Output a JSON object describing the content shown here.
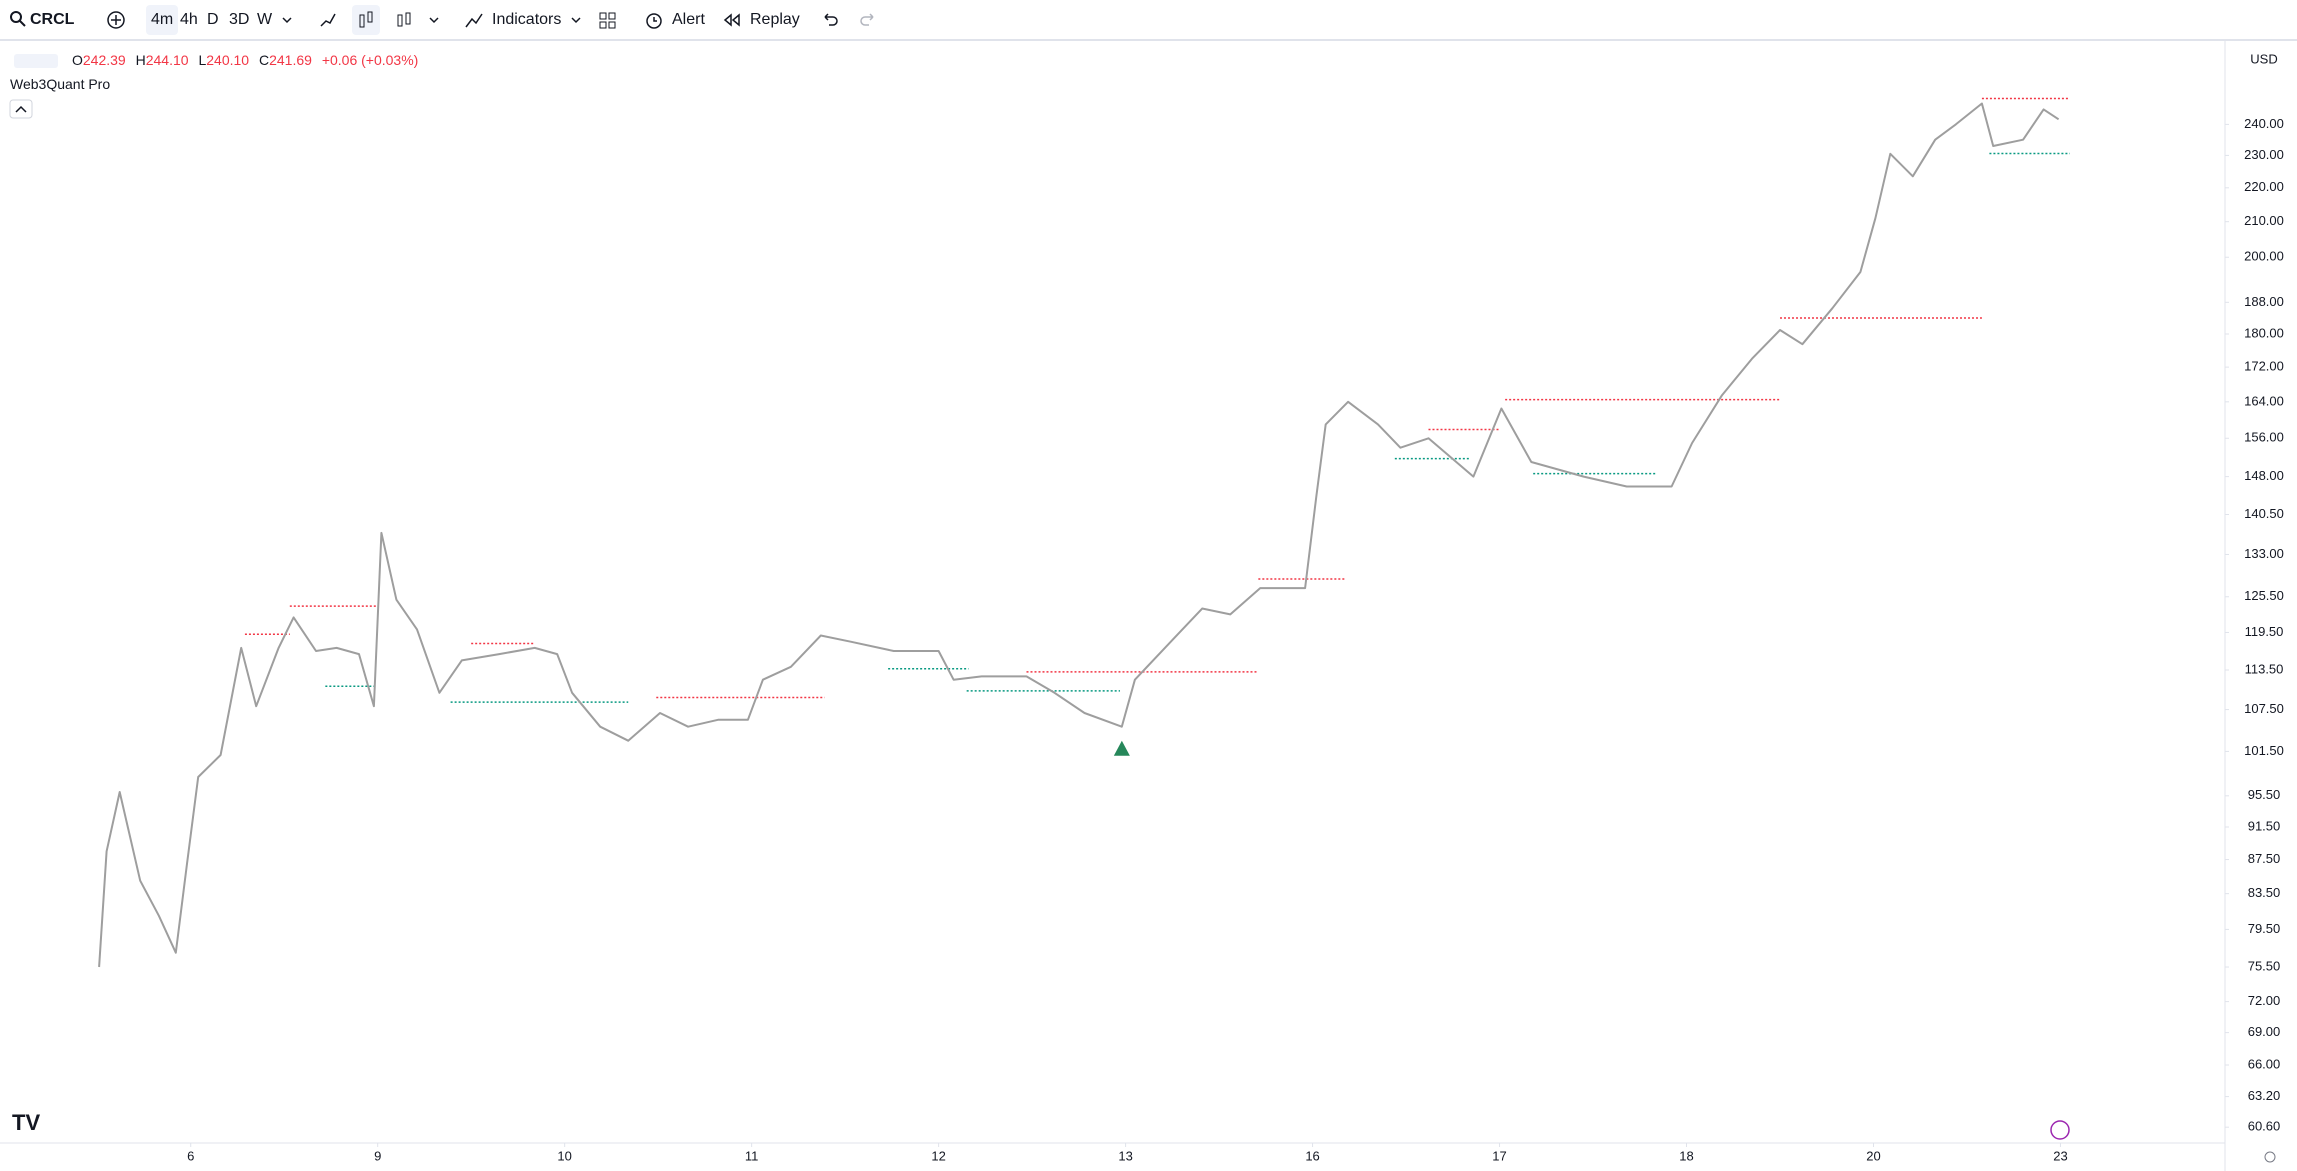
{
  "toolbar": {
    "symbol": "CRCL",
    "intervals": [
      "4m",
      "4h",
      "D",
      "3D",
      "W"
    ],
    "indicators": "Indicators",
    "alert": "Alert",
    "replay": "Replay"
  },
  "legend": {
    "o_label": "O",
    "open": "242.39",
    "h_label": "H",
    "high": "244.10",
    "l_label": "L",
    "low": "240.10",
    "c_label": "C",
    "close": "241.69",
    "change": "+0.06 (+0.03%)",
    "indicator": "Web3Quant Pro"
  },
  "currency": "USD",
  "chart_data": {
    "type": "line",
    "color": "#9e9e9e",
    "log": true,
    "x": [
      -0.49,
      -0.45,
      -0.38,
      -0.27,
      -0.17,
      -0.08,
      -0.02,
      0.04,
      0.16,
      0.27,
      0.35,
      0.47,
      0.55,
      0.67,
      0.78,
      0.9,
      0.98,
      1.02,
      1.1,
      1.21,
      1.33,
      1.45,
      1.65,
      1.84,
      1.96,
      2.04,
      2.19,
      2.34,
      2.51,
      2.66,
      2.82,
      2.98,
      3.06,
      3.21,
      3.37,
      3.53,
      3.76,
      4.0,
      4.08,
      4.23,
      4.47,
      4.62,
      4.78,
      4.98,
      5.05,
      5.21,
      5.41,
      5.56,
      5.72,
      5.96,
      6.02,
      6.07,
      6.19,
      6.35,
      6.47,
      6.62,
      6.86,
      7.01,
      7.17,
      7.45,
      7.68,
      7.92,
      8.03,
      8.19,
      8.35,
      8.5,
      8.62,
      8.78,
      8.93,
      9.01,
      9.09,
      9.21,
      9.33,
      9.44,
      9.58,
      9.64,
      9.8,
      9.91,
      9.99
    ],
    "values": [
      75.5,
      88.5,
      96,
      85,
      81,
      77,
      87,
      98,
      101,
      117,
      108,
      117,
      122,
      116.5,
      117,
      116,
      108,
      137,
      125,
      120,
      110,
      115,
      116,
      117,
      116,
      110,
      105,
      103,
      107,
      105,
      106,
      106,
      112,
      114,
      119,
      118,
      116.5,
      116.5,
      112,
      112.5,
      112.5,
      110,
      107,
      105,
      112,
      117,
      123.5,
      122.5,
      127,
      127,
      144,
      159,
      164,
      159,
      154,
      156,
      148,
      162.5,
      151,
      148,
      146,
      146,
      155,
      165.5,
      174,
      181,
      177.5,
      186.5,
      196,
      211,
      230.5,
      223.5,
      235,
      240,
      247,
      233,
      235,
      245,
      241.69
    ],
    "levels": [
      {
        "y": 119.2,
        "x": [
          0.29,
          0.53
        ],
        "color": "#f23645"
      },
      {
        "y": 123.9,
        "x": [
          0.53,
          1.0
        ],
        "color": "#f23645"
      },
      {
        "y": 111.0,
        "x": [
          0.72,
          0.98
        ],
        "color": "#089981"
      },
      {
        "y": 117.7,
        "x": [
          1.5,
          1.84
        ],
        "color": "#f23645"
      },
      {
        "y": 108.6,
        "x": [
          1.39,
          2.34
        ],
        "color": "#089981"
      },
      {
        "y": 109.3,
        "x": [
          2.49,
          3.39
        ],
        "color": "#f23645"
      },
      {
        "y": 113.7,
        "x": [
          3.73,
          4.16
        ],
        "color": "#089981"
      },
      {
        "y": 110.3,
        "x": [
          4.15,
          4.97
        ],
        "color": "#089981"
      },
      {
        "y": 113.2,
        "x": [
          4.47,
          5.71
        ],
        "color": "#f23645"
      },
      {
        "y": 128.6,
        "x": [
          5.71,
          6.18
        ],
        "color": "#f23645"
      },
      {
        "y": 157.9,
        "x": [
          6.62,
          7.0
        ],
        "color": "#f23645"
      },
      {
        "y": 151.7,
        "x": [
          6.44,
          6.84
        ],
        "color": "#089981"
      },
      {
        "y": 164.5,
        "x": [
          7.03,
          8.5
        ],
        "color": "#f23645"
      },
      {
        "y": 148.6,
        "x": [
          7.18,
          7.84
        ],
        "color": "#089981"
      },
      {
        "y": 184.0,
        "x": [
          8.5,
          9.58
        ],
        "color": "#f23645"
      },
      {
        "y": 248.7,
        "x": [
          9.58,
          10.05
        ],
        "color": "#f23645"
      },
      {
        "y": 230.6,
        "x": [
          9.62,
          10.05
        ],
        "color": "#089981"
      }
    ],
    "signals": [
      {
        "x": 4.98,
        "y": 103,
        "color": "#26875a"
      }
    ],
    "xlim": [
      -1.02,
      10.88
    ],
    "xticks": [
      {
        "value": 0,
        "label": "6"
      },
      {
        "value": 1,
        "label": "9"
      },
      {
        "value": 2,
        "label": "10"
      },
      {
        "value": 3,
        "label": "11"
      },
      {
        "value": 4,
        "label": "12"
      },
      {
        "value": 5,
        "label": "13"
      },
      {
        "value": 6,
        "label": "16"
      },
      {
        "value": 7,
        "label": "17"
      },
      {
        "value": 8,
        "label": "18"
      },
      {
        "value": 9,
        "label": "20"
      },
      {
        "value": 10,
        "label": "23"
      }
    ],
    "ylim": [
      59.3,
      268
    ],
    "yticks": [
      {
        "value": 240,
        "label": "240.00"
      },
      {
        "value": 230,
        "label": "230.00"
      },
      {
        "value": 220,
        "label": "220.00"
      },
      {
        "value": 210,
        "label": "210.00"
      },
      {
        "value": 200,
        "label": "200.00"
      },
      {
        "value": 188,
        "label": "188.00"
      },
      {
        "value": 180,
        "label": "180.00"
      },
      {
        "value": 172,
        "label": "172.00"
      },
      {
        "value": 164,
        "label": "164.00"
      },
      {
        "value": 156,
        "label": "156.00"
      },
      {
        "value": 148,
        "label": "148.00"
      },
      {
        "value": 140.5,
        "label": "140.50"
      },
      {
        "value": 133,
        "label": "133.00"
      },
      {
        "value": 125.5,
        "label": "125.50"
      },
      {
        "value": 119.5,
        "label": "119.50"
      },
      {
        "value": 113.5,
        "label": "113.50"
      },
      {
        "value": 107.5,
        "label": "107.50"
      },
      {
        "value": 101.5,
        "label": "101.50"
      },
      {
        "value": 95.5,
        "label": "95.50"
      },
      {
        "value": 91.5,
        "label": "91.50"
      },
      {
        "value": 87.5,
        "label": "87.50"
      },
      {
        "value": 83.5,
        "label": "83.50"
      },
      {
        "value": 79.5,
        "label": "79.50"
      },
      {
        "value": 75.5,
        "label": "75.50"
      },
      {
        "value": 72,
        "label": "72.00"
      },
      {
        "value": 69,
        "label": "69.00"
      },
      {
        "value": 66,
        "label": "66.00"
      },
      {
        "value": 63.2,
        "label": "63.20"
      },
      {
        "value": 60.6,
        "label": "60.60"
      }
    ],
    "grid": false
  }
}
